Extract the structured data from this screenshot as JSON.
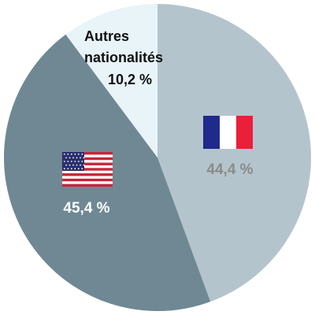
{
  "chart_data": {
    "type": "pie",
    "title": "",
    "slices": [
      {
        "name": "",
        "value": 44.4,
        "label": "44,4 %",
        "color": "#b4c4cd",
        "label_color": "#8a8a8a",
        "icon": "france-flag-icon"
      },
      {
        "name": "",
        "value": 45.4,
        "label": "45,4 %",
        "color": "#6f8894",
        "label_color": "#ffffff",
        "icon": "usa-flag-icon"
      },
      {
        "name": "Autres nationalités",
        "name_lines": [
          "Autres",
          "nationalités"
        ],
        "value": 10.2,
        "label": "10,2 %",
        "color": "#e8f4f8",
        "label_color": "#111111",
        "icon": ""
      }
    ],
    "start_angle": "12 o'clock",
    "direction": "clockwise",
    "legend": "none"
  }
}
